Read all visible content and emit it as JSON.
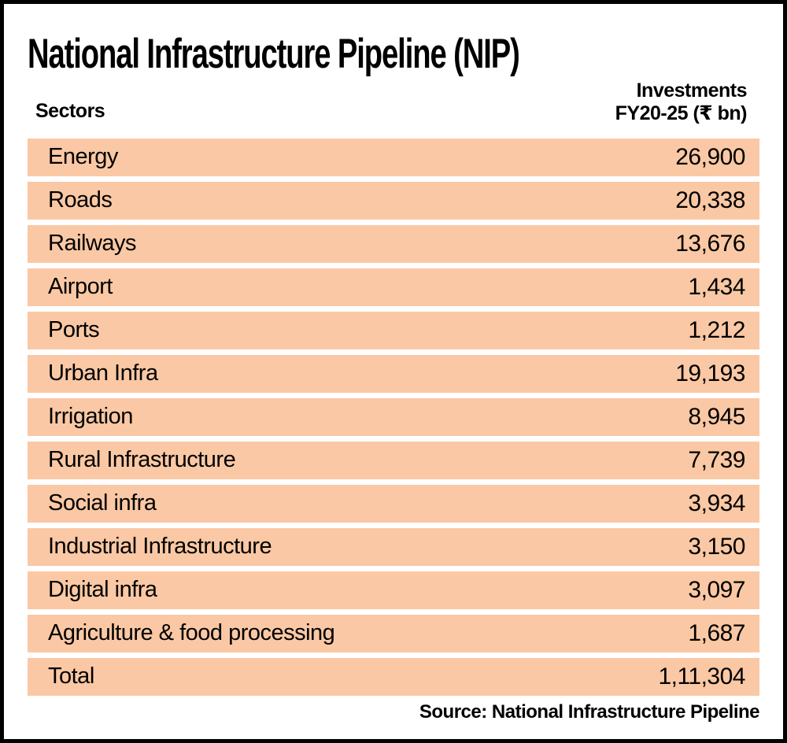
{
  "title": "National Infrastructure Pipeline (NIP)",
  "table": {
    "col1_header": "Sectors",
    "col2_header_line1": "Investments",
    "col2_header_line2": "FY20-25 (₹ bn)",
    "rows": [
      {
        "sector": "Energy",
        "value": "26,900"
      },
      {
        "sector": "Roads",
        "value": "20,338"
      },
      {
        "sector": "Railways",
        "value": "13,676"
      },
      {
        "sector": "Airport",
        "value": "1,434"
      },
      {
        "sector": "Ports",
        "value": "1,212"
      },
      {
        "sector": "Urban Infra",
        "value": "19,193"
      },
      {
        "sector": "Irrigation",
        "value": "8,945"
      },
      {
        "sector": "Rural Infrastructure",
        "value": "7,739"
      },
      {
        "sector": "Social infra",
        "value": "3,934"
      },
      {
        "sector": "Industrial Infrastructure",
        "value": "3,150"
      },
      {
        "sector": "Digital infra",
        "value": "3,097"
      },
      {
        "sector": "Agriculture & food processing",
        "value": "1,687"
      },
      {
        "sector": "Total",
        "value": "1,11,304"
      }
    ]
  },
  "source": "Source: National Infrastructure Pipeline",
  "colors": {
    "row_background": "#fac8a4",
    "border": "#000000",
    "text": "#000000",
    "page_background": "#ffffff"
  },
  "chart_data": {
    "type": "table",
    "title": "National Infrastructure Pipeline (NIP)",
    "columns": [
      "Sectors",
      "Investments FY20-25 (₹ bn)"
    ],
    "categories": [
      "Energy",
      "Roads",
      "Railways",
      "Airport",
      "Ports",
      "Urban Infra",
      "Irrigation",
      "Rural Infrastructure",
      "Social infra",
      "Industrial Infrastructure",
      "Digital infra",
      "Agriculture & food processing"
    ],
    "values": [
      26900,
      20338,
      13676,
      1434,
      1212,
      19193,
      8945,
      7739,
      3934,
      3150,
      3097,
      1687
    ],
    "total": 111304,
    "total_label_shown": "1,11,304",
    "source": "Source: National Infrastructure Pipeline"
  }
}
